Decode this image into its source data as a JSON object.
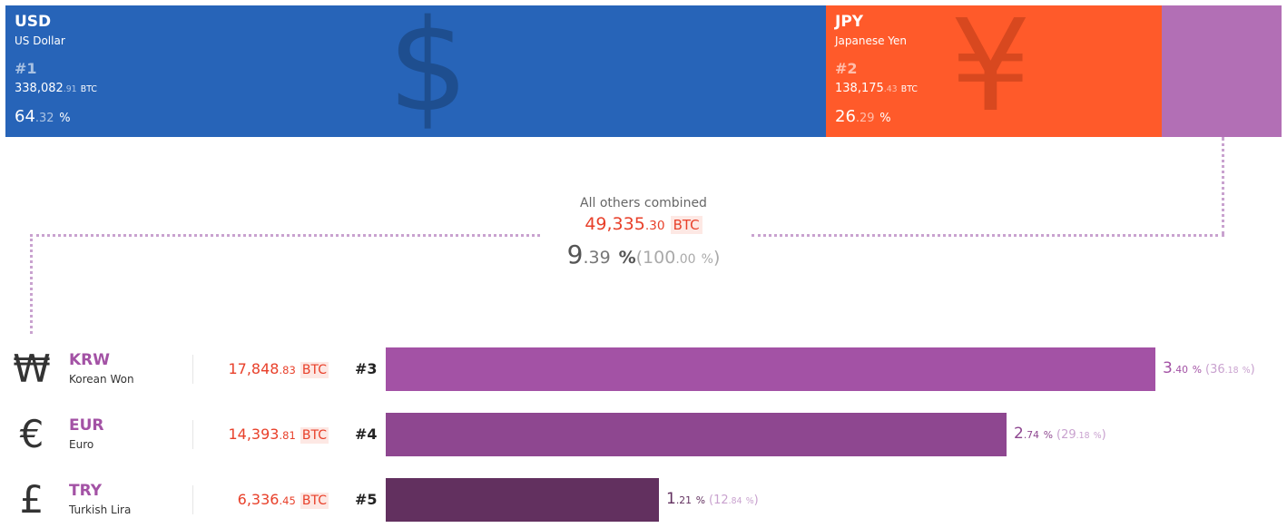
{
  "chart_data": {
    "type": "bar",
    "title": "",
    "top": [
      {
        "code": "USD",
        "name": "US Dollar",
        "rank": "#1",
        "volume_int": "338,082",
        "volume_dec": ".91",
        "unit": "BTC",
        "pct_int": "64",
        "pct_dec": ".32",
        "pct_unit": "%",
        "share": 64.32,
        "color": "#2764b8",
        "glyph": "$",
        "glyph_color": "#1e4e8f"
      },
      {
        "code": "JPY",
        "name": "Japanese Yen",
        "rank": "#2",
        "volume_int": "138,175",
        "volume_dec": ".43",
        "unit": "BTC",
        "pct_int": "26",
        "pct_dec": ".29",
        "pct_unit": "%",
        "share": 26.29,
        "color": "#ff5a2a",
        "glyph": "¥",
        "glyph_color": "#d8481f"
      },
      {
        "code": "",
        "name": "",
        "share": 9.39,
        "color": "#b26fb5"
      }
    ],
    "others": {
      "label": "All others combined",
      "volume_int": "49,335",
      "volume_dec": ".30",
      "unit": "BTC",
      "pct_int": "9",
      "pct_dec": ".39",
      "pct_unit": "%",
      "total_int": "100",
      "total_dec": ".00",
      "total_unit": "%"
    },
    "rows": [
      {
        "symbol": "₩",
        "code": "KRW",
        "name": "Korean Won",
        "volume_int": "17,848",
        "volume_dec": ".83",
        "unit": "BTC",
        "rank": "#3",
        "pct_int": "3",
        "pct_dec": ".40",
        "pct_unit": "%",
        "sub_int": "36",
        "sub_dec": ".18",
        "sub_unit": "%",
        "value": 36.18,
        "color": "#a352a5"
      },
      {
        "symbol": "€",
        "code": "EUR",
        "name": "Euro",
        "volume_int": "14,393",
        "volume_dec": ".81",
        "unit": "BTC",
        "rank": "#4",
        "pct_int": "2",
        "pct_dec": ".74",
        "pct_unit": "%",
        "sub_int": "29",
        "sub_dec": ".18",
        "sub_unit": "%",
        "value": 29.18,
        "color": "#8e4790"
      },
      {
        "symbol": "£",
        "code": "TRY",
        "name": "Turkish Lira",
        "volume_int": "6,336",
        "volume_dec": ".45",
        "unit": "BTC",
        "rank": "#5",
        "pct_int": "1",
        "pct_dec": ".21",
        "pct_unit": "%",
        "sub_int": "12",
        "sub_dec": ".84",
        "sub_unit": "%",
        "value": 12.84,
        "color": "#62305f"
      }
    ]
  }
}
